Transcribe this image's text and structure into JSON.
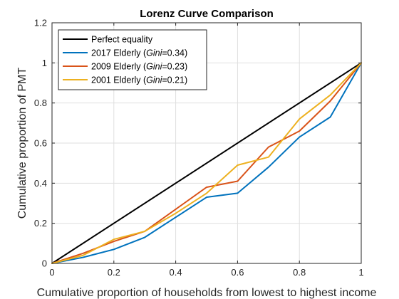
{
  "chart_data": {
    "type": "line",
    "title": "Lorenz Curve Comparison",
    "xlabel": "Cumulative proportion of households from lowest to highest income",
    "ylabel": "Cumulative proportion of PMT",
    "xlim": [
      0,
      1
    ],
    "ylim": [
      0,
      1.2
    ],
    "xticks": [
      0,
      0.2,
      0.4,
      0.6,
      0.8,
      1
    ],
    "xtick_labels": [
      "0",
      "0.2",
      "0.4",
      "0.6",
      "0.8",
      "1"
    ],
    "yticks": [
      0,
      0.2,
      0.4,
      0.6,
      0.8,
      1,
      1.2
    ],
    "ytick_labels": [
      "0",
      "0.2",
      "0.4",
      "0.6",
      "0.8",
      "1",
      "1.2"
    ],
    "grid": true,
    "legend_position": "top-left",
    "series": [
      {
        "name": "Perfect equality",
        "label_parts": [
          "Perfect equality"
        ],
        "color": "#000000",
        "x": [
          0,
          1
        ],
        "y": [
          0,
          1
        ]
      },
      {
        "name": "2017 Elderly (Gini=0.34)",
        "label_parts": [
          "2017 Elderly (",
          "Gini",
          "=0.34)"
        ],
        "color": "#0072BD",
        "x": [
          0,
          0.1,
          0.2,
          0.3,
          0.4,
          0.5,
          0.6,
          0.7,
          0.8,
          0.9,
          1
        ],
        "y": [
          0,
          0.03,
          0.07,
          0.13,
          0.23,
          0.33,
          0.35,
          0.48,
          0.63,
          0.73,
          1
        ]
      },
      {
        "name": "2009 Elderly (Gini=0.23)",
        "label_parts": [
          "2009 Elderly (",
          "Gini",
          "=0.23)"
        ],
        "color": "#D95319",
        "x": [
          0,
          0.1,
          0.2,
          0.3,
          0.4,
          0.5,
          0.6,
          0.7,
          0.8,
          0.9,
          1
        ],
        "y": [
          0,
          0.05,
          0.11,
          0.16,
          0.27,
          0.38,
          0.41,
          0.58,
          0.66,
          0.81,
          1
        ]
      },
      {
        "name": "2001 Elderly (Gini=0.21)",
        "label_parts": [
          "2001 Elderly (",
          "Gini",
          "=0.21)"
        ],
        "color": "#EDB120",
        "x": [
          0,
          0.1,
          0.2,
          0.3,
          0.4,
          0.5,
          0.6,
          0.7,
          0.8,
          0.9,
          1
        ],
        "y": [
          0,
          0.04,
          0.12,
          0.16,
          0.25,
          0.35,
          0.49,
          0.53,
          0.72,
          0.84,
          1
        ]
      }
    ]
  }
}
